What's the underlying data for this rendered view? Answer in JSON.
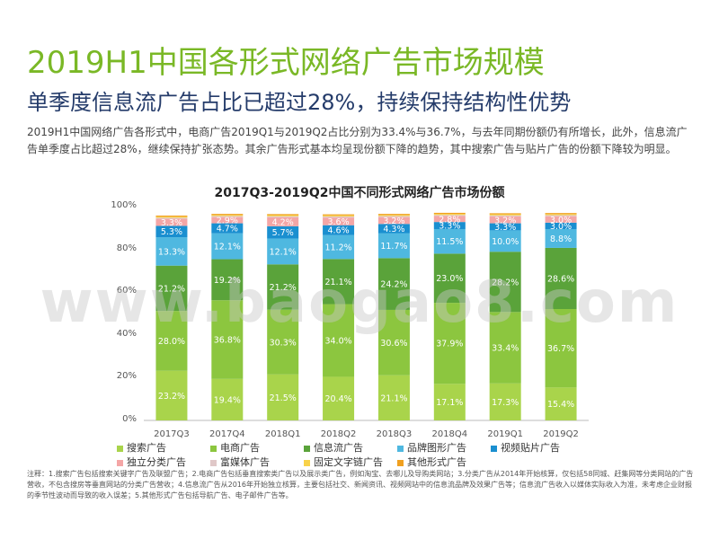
{
  "page": {
    "title": "2019H1中国各形式网络广告市场规模",
    "subtitle": "单季度信息流广告占比已超过28%，持续保持结构性优势",
    "description": "2019H1中国网络广告各形式中，电商广告2019Q1与2019Q2占比分别为33.4%与36.7%，与去年同期份额仍有所增长，此外，信息流广告单季度占比超过28%，继续保持扩张态势。其余广告形式基本均呈现份额下降的趋势，其中搜索广告与贴片广告的份额下降较为明显。",
    "notes": "注释：1.搜索广告包括搜索关键字广告及联盟广告；2.电商广告包括垂直搜索类广告以及展示类广告，例如淘宝、去哪儿及导购类网站；3.分类广告从2014年开始核算，仅包括58同城、赶集网等分类网站的广告营收，不包含搜房等垂直网站的分类广告营收；4.信息流广告从2016年开始独立核算，主要包括社交、新闻资讯、视频网站中的信息流品牌及效果广告等；信息流广告收入以媒体实际收入为准，未考虑企业财报的季节性波动而导致的收入误差；5.其他形式广告包括导航广告、电子邮件广告等。",
    "watermark": "www.baogao8.com"
  },
  "chart_data": {
    "type": "bar",
    "stacked": true,
    "title": "2017Q3-2019Q2中国不同形式网络广告市场份额",
    "categories": [
      "2017Q3",
      "2017Q4",
      "2018Q1",
      "2018Q2",
      "2018Q3",
      "2018Q4",
      "2019Q1",
      "2019Q2"
    ],
    "ylim": [
      0,
      100
    ],
    "yticks": [
      "0%",
      "20%",
      "40%",
      "60%",
      "80%",
      "100%"
    ],
    "legend_position": "bottom",
    "series": [
      {
        "name": "搜索广告",
        "color": "#a9d44b",
        "values": [
          23.2,
          19.4,
          21.5,
          20.4,
          21.1,
          17.1,
          17.3,
          15.4
        ],
        "labels": [
          "23.2%",
          "19.4%",
          "21.5%",
          "20.4%",
          "21.1%",
          "17.1%",
          "17.3%",
          "15.4%"
        ]
      },
      {
        "name": "电商广告",
        "color": "#8cc63f",
        "values": [
          28.0,
          36.8,
          30.3,
          34.0,
          30.6,
          37.9,
          33.4,
          36.7
        ],
        "labels": [
          "28.0%",
          "36.8%",
          "30.3%",
          "34.0%",
          "30.6%",
          "37.9%",
          "33.4%",
          "36.7%"
        ]
      },
      {
        "name": "信息流广告",
        "color": "#5aa33a",
        "values": [
          21.2,
          19.2,
          21.2,
          21.1,
          24.2,
          23.0,
          28.2,
          28.6
        ],
        "labels": [
          "21.2%",
          "19.2%",
          "21.2%",
          "21.1%",
          "24.2%",
          "23.0%",
          "28.2%",
          "28.6%"
        ]
      },
      {
        "name": "品牌图形广告",
        "color": "#4fb8e0",
        "values": [
          13.3,
          12.1,
          12.1,
          11.2,
          11.7,
          11.5,
          10.0,
          8.8
        ],
        "labels": [
          "13.3%",
          "12.1%",
          "12.1%",
          "11.2%",
          "11.7%",
          "11.5%",
          "10.0%",
          "8.8%"
        ]
      },
      {
        "name": "视频贴片广告",
        "color": "#1a8fd0",
        "values": [
          5.3,
          4.7,
          5.7,
          4.6,
          4.3,
          3.3,
          3.3,
          3.0
        ],
        "labels": [
          "5.3%",
          "4.7%",
          "5.7%",
          "4.6%",
          "4.3%",
          "3.3%",
          "3.3%",
          "3.0%"
        ]
      },
      {
        "name": "独立分类广告",
        "color": "#f4a6a6",
        "values": [
          3.3,
          2.9,
          4.2,
          3.6,
          3.2,
          2.8,
          3.2,
          3.0
        ],
        "labels": [
          "3.3%",
          "2.9%",
          "4.2%",
          "3.6%",
          "3.2%",
          "2.8%",
          "3.2%",
          "3.0%"
        ]
      },
      {
        "name": "富媒体广告",
        "color": "#e0c8c8",
        "values": [
          0.5,
          0.5,
          0.5,
          0.5,
          0.5,
          0.5,
          0.5,
          0.5
        ],
        "labels": []
      },
      {
        "name": "固定文字链广告",
        "color": "#f8d24a",
        "values": [
          0.5,
          0.5,
          0.5,
          0.5,
          0.5,
          0.5,
          0.5,
          0.5
        ],
        "labels": []
      },
      {
        "name": "其他形式广告",
        "color": "#f0a020",
        "values": [
          0.5,
          0.5,
          0.5,
          0.5,
          0.5,
          0.5,
          0.5,
          0.5
        ],
        "labels": []
      }
    ]
  }
}
